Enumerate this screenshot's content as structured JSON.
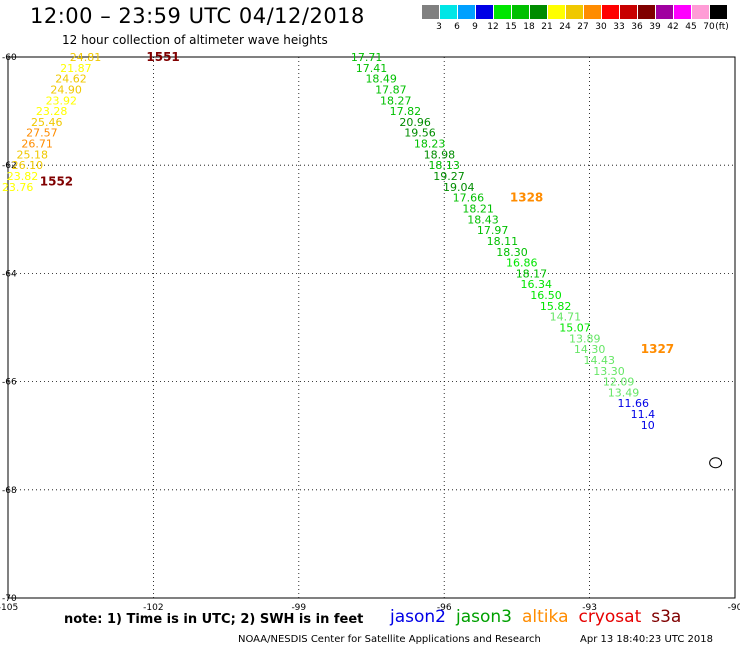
{
  "header": {
    "title": "12:00 – 23:59 UTC 04/12/2018",
    "subtitle": "12 hour collection of altimeter wave heights"
  },
  "legend": {
    "unit": "(ft)",
    "bins": [
      {
        "label": "3",
        "color": "#808080"
      },
      {
        "label": "6",
        "color": "#00e6e6"
      },
      {
        "label": "9",
        "color": "#00a0ff"
      },
      {
        "label": "12",
        "color": "#0000e6"
      },
      {
        "label": "15",
        "color": "#00e600"
      },
      {
        "label": "18",
        "color": "#00c000"
      },
      {
        "label": "21",
        "color": "#008c00"
      },
      {
        "label": "24",
        "color": "#ffff00"
      },
      {
        "label": "27",
        "color": "#f0c800"
      },
      {
        "label": "30",
        "color": "#ff8c00"
      },
      {
        "label": "33",
        "color": "#ff0000"
      },
      {
        "label": "36",
        "color": "#c80000"
      },
      {
        "label": "39",
        "color": "#800000"
      },
      {
        "label": "42",
        "color": "#a000a0"
      },
      {
        "label": "45",
        "color": "#ff00ff"
      },
      {
        "label": "70",
        "color": "#ff9cd6"
      },
      {
        "label": "",
        "color": "#000000"
      }
    ]
  },
  "map": {
    "lon_range": [
      -105,
      -90
    ],
    "lat_range": [
      -70,
      -60
    ],
    "lon_ticks": [
      {
        "value": -105,
        "label": "-105"
      },
      {
        "value": -102,
        "label": "-102"
      },
      {
        "value": -99,
        "label": "-99"
      },
      {
        "value": -96,
        "label": "-96"
      },
      {
        "value": -93,
        "label": "-93"
      },
      {
        "value": -90,
        "label": "-90"
      }
    ],
    "lat_ticks": [
      {
        "value": -60,
        "label": "-60"
      },
      {
        "value": -62,
        "label": "-62"
      },
      {
        "value": -64,
        "label": "-64"
      },
      {
        "value": -66,
        "label": "-66"
      },
      {
        "value": -68,
        "label": "-68"
      },
      {
        "value": -70,
        "label": "-70"
      }
    ],
    "gridlines": true
  },
  "passes": [
    {
      "label": "1551",
      "color": "#800000"
    },
    {
      "label": "1552",
      "color": "#800000"
    },
    {
      "label": "1328",
      "color": "#ff8c00"
    },
    {
      "label": "1327",
      "color": "#ff8c00"
    }
  ],
  "tracks": [
    {
      "name": "altika 1551/1552",
      "points": [
        {
          "lon": -103.4,
          "lat": -60.0,
          "swh": "24.81",
          "color": "#f0c800"
        },
        {
          "lon": -103.6,
          "lat": -60.2,
          "swh": "21.87",
          "color": "#ffff00"
        },
        {
          "lon": -103.7,
          "lat": -60.4,
          "swh": "24.62",
          "color": "#f0c800"
        },
        {
          "lon": -103.8,
          "lat": -60.6,
          "swh": "24.90",
          "color": "#f0c800"
        },
        {
          "lon": -103.9,
          "lat": -60.8,
          "swh": "23.92",
          "color": "#ffff00"
        },
        {
          "lon": -104.1,
          "lat": -61.0,
          "swh": "23.28",
          "color": "#ffff00"
        },
        {
          "lon": -104.2,
          "lat": -61.2,
          "swh": "25.46",
          "color": "#f0c800"
        },
        {
          "lon": -104.3,
          "lat": -61.4,
          "swh": "27.57",
          "color": "#ff8c00"
        },
        {
          "lon": -104.4,
          "lat": -61.6,
          "swh": "26.71",
          "color": "#ff8c00"
        },
        {
          "lon": -104.5,
          "lat": -61.8,
          "swh": "25.18",
          "color": "#f0c800"
        },
        {
          "lon": -104.6,
          "lat": -62.0,
          "swh": "26.10",
          "color": "#f0c800"
        },
        {
          "lon": -104.7,
          "lat": -62.2,
          "swh": "23.82",
          "color": "#ffff00"
        },
        {
          "lon": -104.8,
          "lat": -62.4,
          "swh": "23.76",
          "color": "#ffff00"
        }
      ]
    },
    {
      "name": "jason3 1328/1327",
      "points": [
        {
          "lon": -97.6,
          "lat": -60.0,
          "swh": "17.71",
          "color": "#00c000"
        },
        {
          "lon": -97.5,
          "lat": -60.2,
          "swh": "17.41",
          "color": "#00c000"
        },
        {
          "lon": -97.3,
          "lat": -60.4,
          "swh": "18.49",
          "color": "#00c000"
        },
        {
          "lon": -97.1,
          "lat": -60.6,
          "swh": "17.87",
          "color": "#00c000"
        },
        {
          "lon": -97.0,
          "lat": -60.8,
          "swh": "18.27",
          "color": "#00c000"
        },
        {
          "lon": -96.8,
          "lat": -61.0,
          "swh": "17.82",
          "color": "#00c000"
        },
        {
          "lon": -96.6,
          "lat": -61.2,
          "swh": "20.96",
          "color": "#008c00"
        },
        {
          "lon": -96.5,
          "lat": -61.4,
          "swh": "19.56",
          "color": "#008c00"
        },
        {
          "lon": -96.3,
          "lat": -61.6,
          "swh": "18.23",
          "color": "#00c000"
        },
        {
          "lon": -96.1,
          "lat": -61.8,
          "swh": "18.98",
          "color": "#008c00"
        },
        {
          "lon": -96.0,
          "lat": -62.0,
          "swh": "18.13",
          "color": "#00c000"
        },
        {
          "lon": -95.9,
          "lat": -62.2,
          "swh": "19.27",
          "color": "#008c00"
        },
        {
          "lon": -95.7,
          "lat": -62.4,
          "swh": "19.04",
          "color": "#008c00"
        },
        {
          "lon": -95.5,
          "lat": -62.6,
          "swh": "17.66",
          "color": "#00c000"
        },
        {
          "lon": -95.3,
          "lat": -62.8,
          "swh": "18.21",
          "color": "#00c000"
        },
        {
          "lon": -95.2,
          "lat": -63.0,
          "swh": "18.43",
          "color": "#00c000"
        },
        {
          "lon": -95.0,
          "lat": -63.2,
          "swh": "17.97",
          "color": "#00c000"
        },
        {
          "lon": -94.8,
          "lat": -63.4,
          "swh": "18.11",
          "color": "#00c000"
        },
        {
          "lon": -94.6,
          "lat": -63.6,
          "swh": "18.30",
          "color": "#00c000"
        },
        {
          "lon": -94.4,
          "lat": -63.8,
          "swh": "16.86",
          "color": "#00e600"
        },
        {
          "lon": -94.2,
          "lat": -64.0,
          "swh": "18.17",
          "color": "#00c000"
        },
        {
          "lon": -94.1,
          "lat": -64.2,
          "swh": "16.34",
          "color": "#00e600"
        },
        {
          "lon": -93.9,
          "lat": -64.4,
          "swh": "16.50",
          "color": "#00e600"
        },
        {
          "lon": -93.7,
          "lat": -64.6,
          "swh": "15.82",
          "color": "#00e600"
        },
        {
          "lon": -93.5,
          "lat": -64.8,
          "swh": "14.71",
          "color": "#66e666"
        },
        {
          "lon": -93.3,
          "lat": -65.0,
          "swh": "15.07",
          "color": "#00e600"
        },
        {
          "lon": -93.1,
          "lat": -65.2,
          "swh": "13.89",
          "color": "#66e666"
        },
        {
          "lon": -93.0,
          "lat": -65.4,
          "swh": "14.30",
          "color": "#66e666"
        },
        {
          "lon": -92.8,
          "lat": -65.6,
          "swh": "14.43",
          "color": "#66e666"
        },
        {
          "lon": -92.6,
          "lat": -65.8,
          "swh": "13.30",
          "color": "#66e666"
        },
        {
          "lon": -92.4,
          "lat": -66.0,
          "swh": "12.09",
          "color": "#66e666"
        },
        {
          "lon": -92.3,
          "lat": -66.2,
          "swh": "13.49",
          "color": "#66e666"
        },
        {
          "lon": -92.1,
          "lat": -66.4,
          "swh": "11.66",
          "color": "#0000e6"
        },
        {
          "lon": -91.9,
          "lat": -66.6,
          "swh": "11.4",
          "color": "#0000e6"
        },
        {
          "lon": -91.8,
          "lat": -66.8,
          "swh": "10",
          "color": "#0000e6"
        }
      ]
    }
  ],
  "footer": {
    "note": "note: 1) Time is in UTC; 2) SWH is in feet",
    "satellites": [
      {
        "name": "jason2",
        "color": "#0000e6"
      },
      {
        "name": "jason3",
        "color": "#00a000"
      },
      {
        "name": "altika",
        "color": "#ff8c00"
      },
      {
        "name": "cryosat",
        "color": "#e60000"
      },
      {
        "name": "s3a",
        "color": "#800000"
      }
    ],
    "credit": "NOAA/NESDIS Center for Satellite Applications and Research",
    "timestamp": "Apr 13 18:40:23 UTC 2018"
  }
}
